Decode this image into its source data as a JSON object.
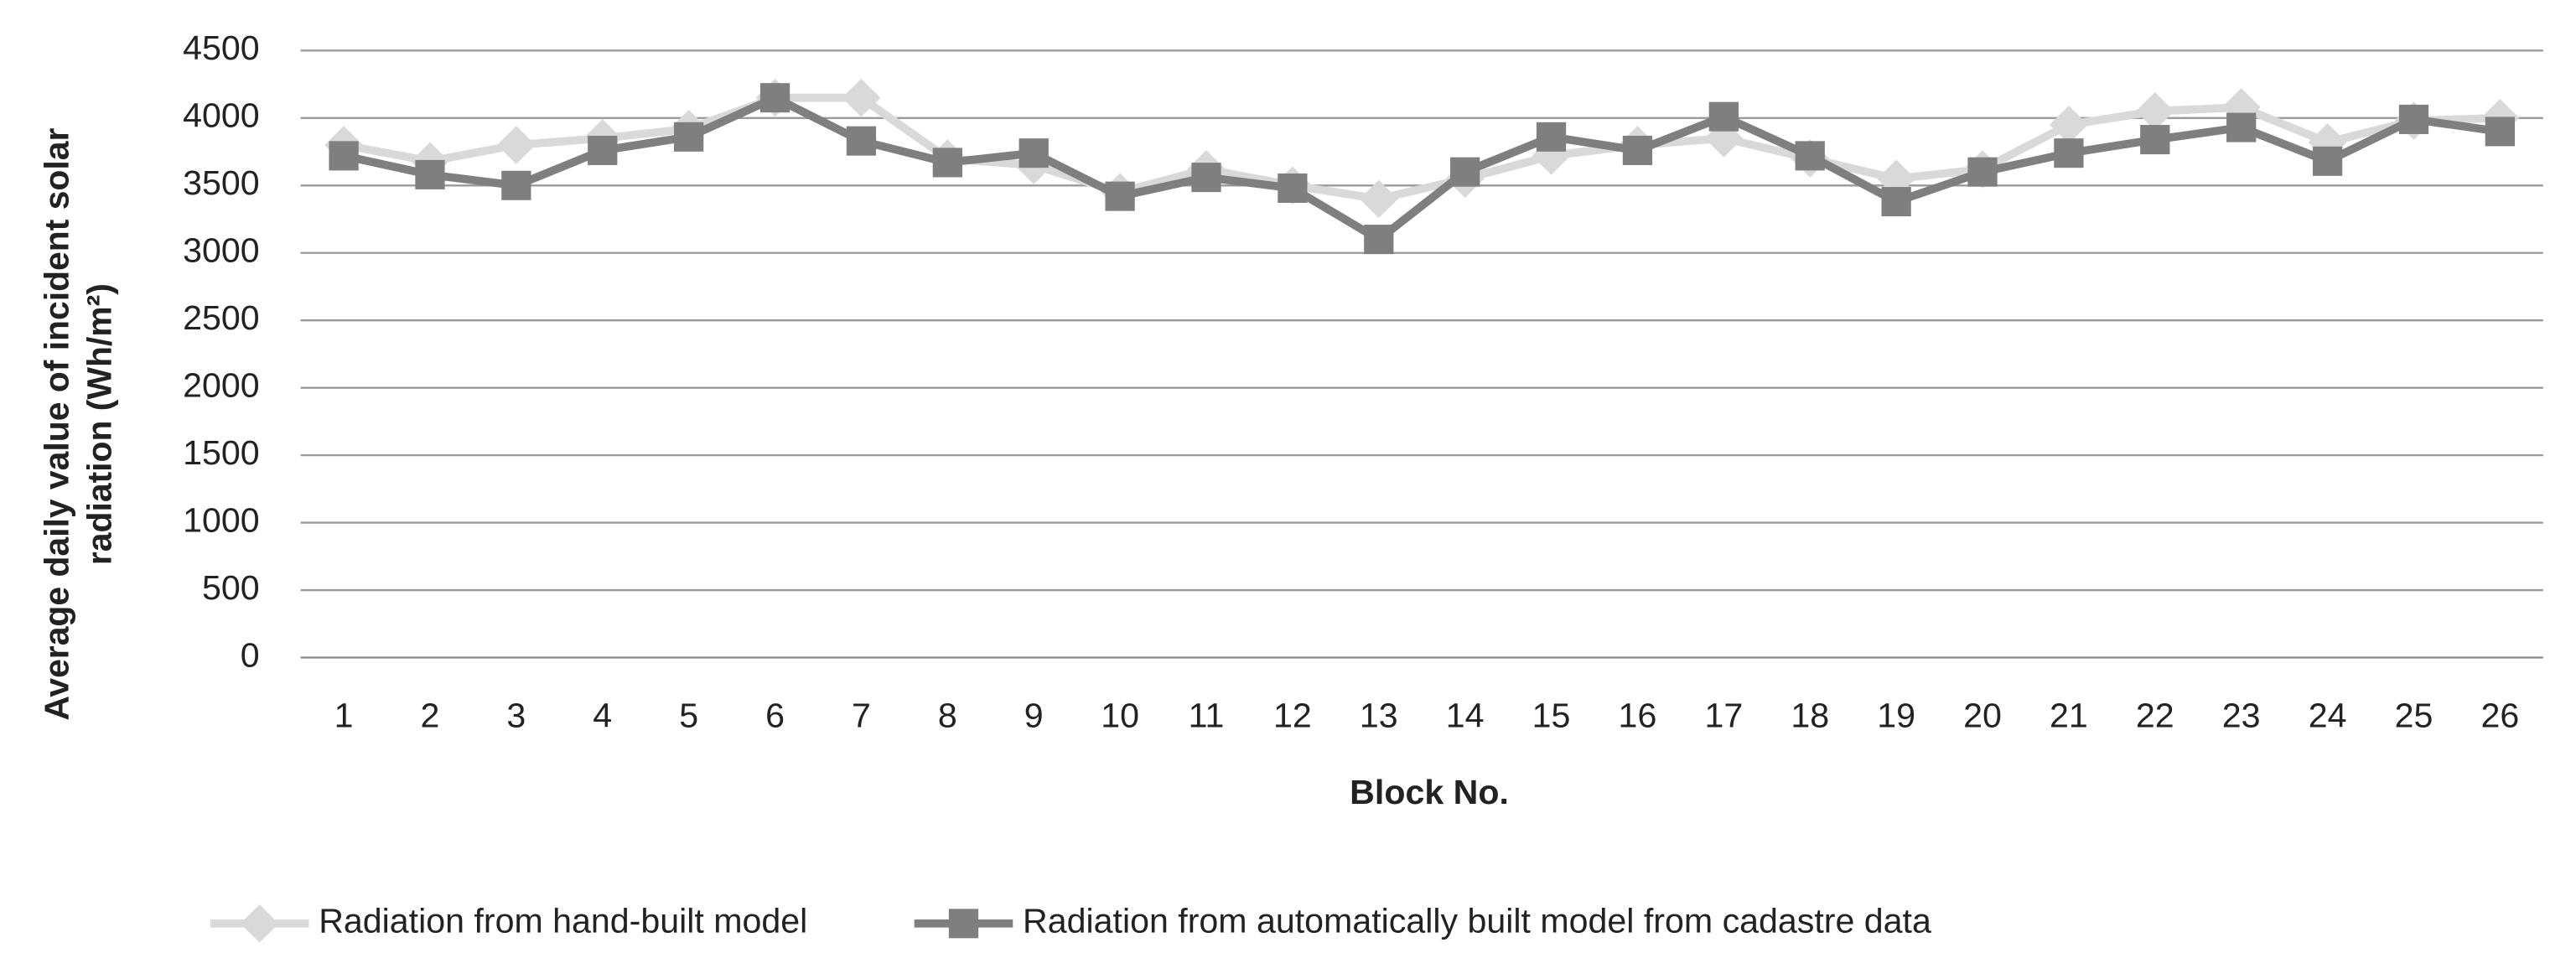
{
  "chart_data": {
    "type": "line",
    "x_label": "Block No.",
    "y_label": [
      "Average daily value of incident solar",
      "radiation (Wh/m²)"
    ],
    "categories": [
      "1",
      "2",
      "3",
      "4",
      "5",
      "6",
      "7",
      "8",
      "9",
      "10",
      "11",
      "12",
      "13",
      "14",
      "15",
      "16",
      "17",
      "18",
      "19",
      "20",
      "21",
      "22",
      "23",
      "24",
      "25",
      "26"
    ],
    "series": [
      {
        "name": "Radiation from hand-built model",
        "color": "#d9d9d9",
        "marker": "diamond",
        "values": [
          3800,
          3680,
          3800,
          3850,
          3920,
          4150,
          4150,
          3700,
          3650,
          3450,
          3620,
          3500,
          3400,
          3550,
          3720,
          3800,
          3850,
          3700,
          3550,
          3620,
          3950,
          4050,
          4080,
          3820,
          3980,
          4000
        ]
      },
      {
        "name": "Radiation from automatically built model from cadastre data",
        "color": "#7f7f7f",
        "marker": "square",
        "values": [
          3720,
          3580,
          3500,
          3760,
          3860,
          4150,
          3830,
          3670,
          3740,
          3420,
          3560,
          3480,
          3100,
          3600,
          3860,
          3760,
          4010,
          3720,
          3380,
          3600,
          3740,
          3840,
          3930,
          3680,
          3990,
          3900
        ]
      }
    ],
    "ylim": [
      0,
      4500
    ],
    "yticks": [
      0,
      500,
      1000,
      1500,
      2000,
      2500,
      3000,
      3500,
      4000,
      4500
    ],
    "grid": true,
    "legend": "bottom"
  }
}
